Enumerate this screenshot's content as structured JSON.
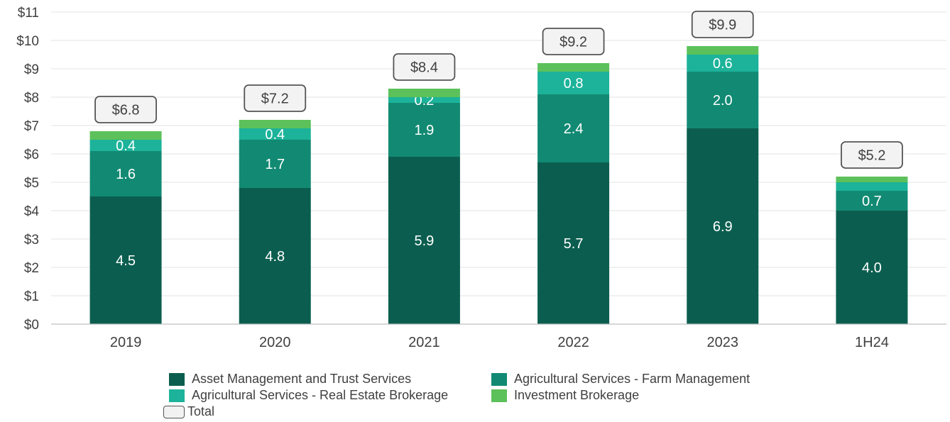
{
  "chart_data": {
    "type": "bar",
    "stacked": true,
    "categories": [
      "2019",
      "2020",
      "2021",
      "2022",
      "2023",
      "1H24"
    ],
    "series": [
      {
        "name": "Asset Management and Trust Services",
        "color": "#0b5e4f",
        "values": [
          4.5,
          4.8,
          5.9,
          5.7,
          6.9,
          4.0
        ],
        "labels": [
          "4.5",
          "4.8",
          "5.9",
          "5.7",
          "6.9",
          "4.0"
        ]
      },
      {
        "name": "Agricultural Services - Farm Management",
        "color": "#128a73",
        "values": [
          1.6,
          1.7,
          1.9,
          2.4,
          2.0,
          0.7
        ],
        "labels": [
          "1.6",
          "1.7",
          "1.9",
          "2.4",
          "2.0",
          "0.7"
        ]
      },
      {
        "name": "Agricultural Services - Real Estate Brokerage",
        "color": "#1cb39a",
        "values": [
          0.4,
          0.4,
          0.2,
          0.8,
          0.6,
          0.3
        ],
        "labels": [
          "0.4",
          "0.4",
          "0.2",
          "0.8",
          "0.6",
          ""
        ]
      },
      {
        "name": "Investment Brokerage",
        "color": "#5cc15a",
        "values": [
          0.3,
          0.3,
          0.3,
          0.3,
          0.3,
          0.2
        ],
        "labels": [
          "",
          "",
          "",
          "",
          "",
          ""
        ]
      }
    ],
    "totals": [
      "$6.8",
      "$7.2",
      "$8.4",
      "$9.2",
      "$9.9",
      "$5.2"
    ],
    "total_values": [
      6.8,
      7.2,
      8.4,
      9.2,
      9.9,
      5.2
    ],
    "total_legend_label": "Total",
    "ylim": [
      0,
      11
    ],
    "yticks": [
      0,
      1,
      2,
      3,
      4,
      5,
      6,
      7,
      8,
      9,
      10,
      11
    ],
    "ytick_labels": [
      "$0",
      "$1",
      "$2",
      "$3",
      "$4",
      "$5",
      "$6",
      "$7",
      "$8",
      "$9",
      "$10",
      "$11"
    ],
    "grid": true,
    "legend_position": "bottom",
    "title": "",
    "xlabel": "",
    "ylabel": ""
  }
}
